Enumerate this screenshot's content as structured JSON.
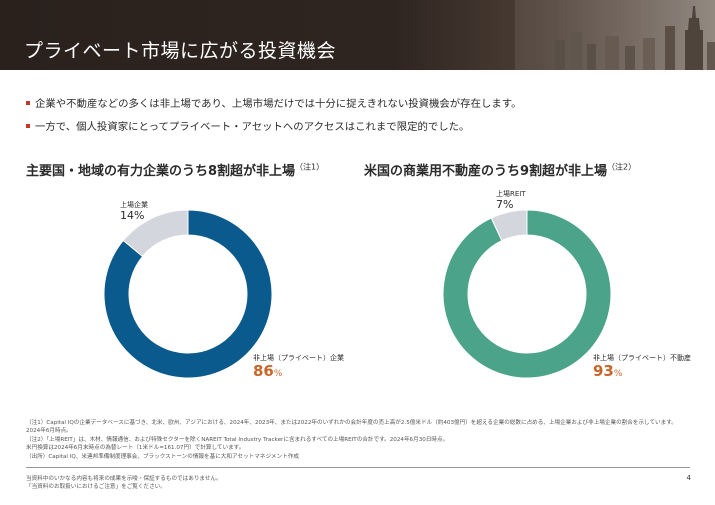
{
  "header": {
    "title": "プライベート市場に広がる投資機会"
  },
  "bullets": [
    "企業や不動産などの多くは非上場であり、上場市場だけでは十分に捉えきれない投資機会が存在します。",
    "一方で、個人投資家にとってプライベート・アセットへのアクセスはこれまで限定的でした。"
  ],
  "left_section": {
    "title": "主要国・地域の有力企業のうち8割超が非上場",
    "note_ref": "（注1）",
    "listed_label": "上場企業",
    "listed_pct": "14%",
    "private_label": "非上場（プライベート）企業",
    "private_value": "86",
    "unit": "%"
  },
  "right_section": {
    "title": "米国の商業用不動産のうち9割超が非上場",
    "note_ref": "（注2）",
    "listed_label": "上場REIT",
    "listed_pct": "7%",
    "private_label": "非上場（プライベート）不動産",
    "private_value": "93",
    "unit": "%"
  },
  "chart_data": [
    {
      "type": "pie",
      "title": "主要国・地域の有力企業のうち8割超が非上場",
      "categories": [
        "非上場（プライベート）企業",
        "上場企業"
      ],
      "values": [
        86,
        14
      ],
      "colors": [
        "#0b5a8e",
        "#d3d6dd"
      ]
    },
    {
      "type": "pie",
      "title": "米国の商業用不動産のうち9割超が非上場",
      "categories": [
        "非上場（プライベート）不動産",
        "上場REIT"
      ],
      "values": [
        93,
        7
      ],
      "colors": [
        "#4ba489",
        "#d3d6dd"
      ]
    }
  ],
  "notes": [
    "（注1）Capital IQの企業データベースに基づき、北米、欧州、アジアにおける、2024年、2023年、または2022年のいずれかの会計年度の売上高が2.5億米ドル（約403億円）を超える企業の総数に占める、上場企業および非上場企業の割合を示しています。",
    "2024年6月時点。",
    "（注2）「上場REIT」は、木材、情報通信、および特殊セクターを除くNAREIT Total Industry Trackerに含まれるすべての上場REITの合計です。2024年6月30日時点。",
    "米円換算は2024年6月末時点の為替レート（1米ドル=161.07円）で計算しています。",
    "（出所）Capital IQ、米連邦準備制度理事会、ブラックストーンの情報を基に大和アセットマネジメント作成"
  ],
  "disclaimer": [
    "当資料中のいかなる内容も将来の成果を示唆・保証するものではありません。",
    "「当資料のお取扱いにおけるご注意」をご覧ください。"
  ],
  "page_number": "4"
}
